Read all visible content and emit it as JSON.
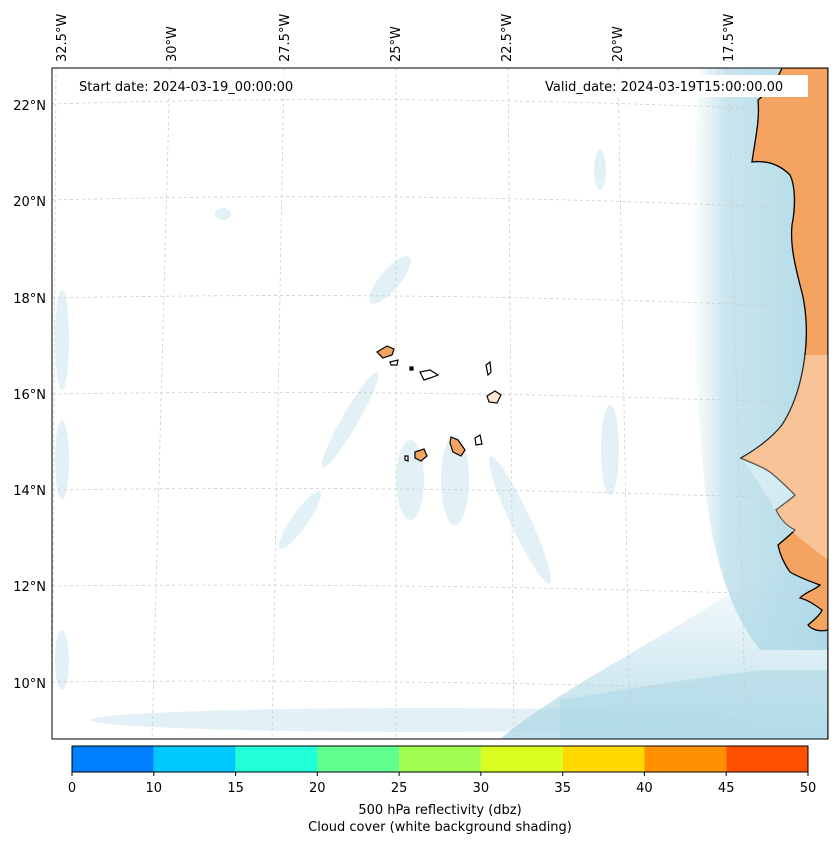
{
  "map": {
    "start_date": "Start date: 2024-03-19_00:00:00",
    "valid_date": "Valid_date: 2024-03-19T15:00:00.00",
    "lon_labels": [
      "32.5°W",
      "30°W",
      "27.5°W",
      "25°W",
      "22.5°W",
      "20°W",
      "17.5°W"
    ],
    "lat_labels": [
      "22°N",
      "20°N",
      "18°N",
      "16°N",
      "14°N",
      "12°N",
      "10°N"
    ],
    "colors": {
      "land": "#f4a460",
      "cloud": "#add8e6",
      "coast": "#000000",
      "grid": "#cccccc"
    }
  },
  "colorbar": {
    "ticks": [
      "0",
      "10",
      "15",
      "20",
      "25",
      "30",
      "35",
      "40",
      "45",
      "50"
    ],
    "colors": [
      "#0080ff",
      "#00c8ff",
      "#20ffd8",
      "#60ff90",
      "#a0ff50",
      "#d8ff20",
      "#ffd800",
      "#ff9000",
      "#ff5000"
    ],
    "label_line1": "500 hPa reflectivity (dbz)",
    "label_line2": "Cloud cover (white background shading)"
  }
}
